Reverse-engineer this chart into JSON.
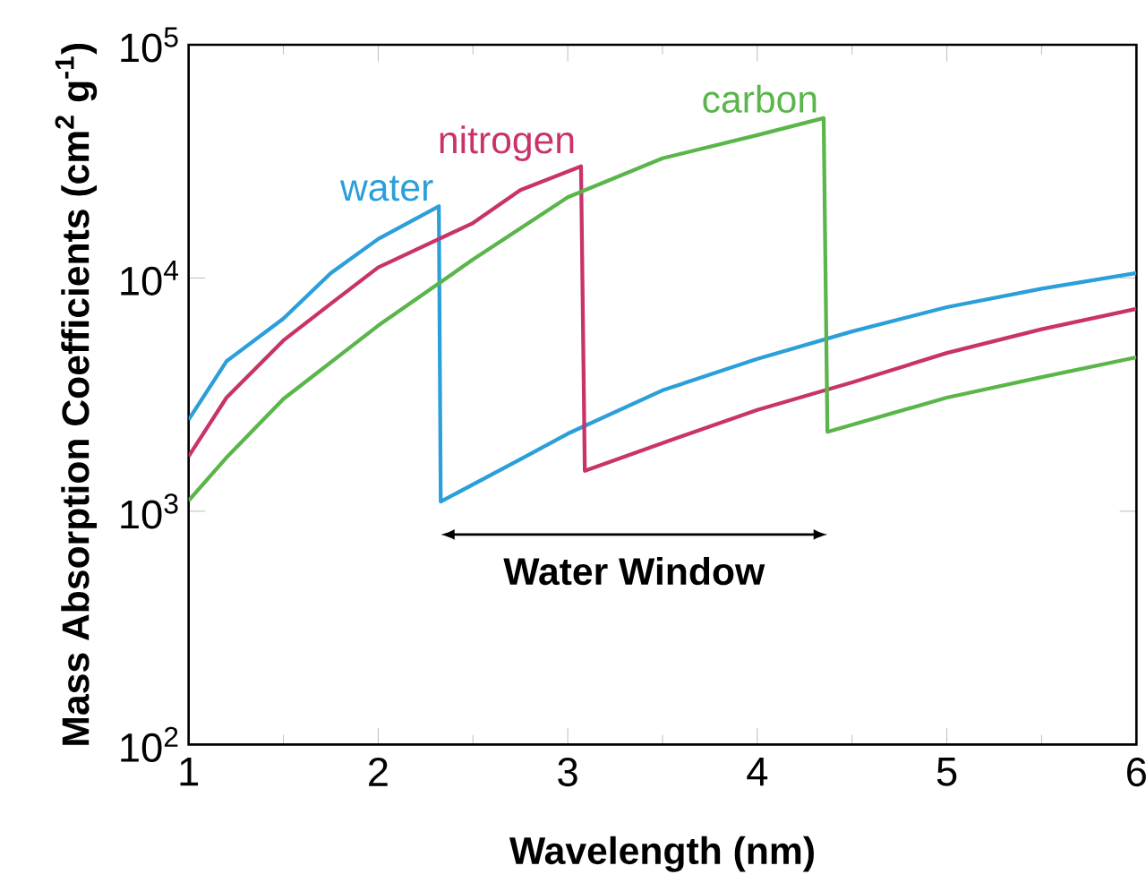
{
  "chart_data": {
    "type": "line",
    "xlabel": "Wavelength (nm)",
    "ylabel": "Mass Absorption Coefficients (cm$^{2}$ g$^{-1}$)",
    "log": "y",
    "grid": false,
    "legend": false,
    "marker": "none",
    "line_style": "solid",
    "xlim": [
      1,
      6
    ],
    "xticks": [
      1,
      2,
      3,
      4,
      5,
      6
    ],
    "ylim": [
      100,
      100000
    ],
    "yticks": [
      {
        "value": 100,
        "label": "10$^{2}$"
      },
      {
        "value": 1000,
        "label": "10$^{3}$"
      },
      {
        "value": 10000,
        "label": "10$^{4}$"
      },
      {
        "value": 100000,
        "label": "10$^{5}$"
      }
    ],
    "annotations": [
      "Water Window"
    ],
    "series": [
      {
        "name": "water",
        "color": "#2a9fd9",
        "x": [
          1,
          1.2,
          1.5,
          1.75,
          2,
          2.32,
          2.33,
          2.75,
          3,
          3.5,
          4,
          4.5,
          5,
          5.5,
          6
        ],
        "values": [
          2470,
          4400,
          6700,
          10500,
          14700,
          20300,
          1100,
          1670,
          2150,
          3300,
          4500,
          5900,
          7500,
          9000,
          10500
        ]
      },
      {
        "name": "nitrogen",
        "color": "#c8336a",
        "x": [
          1,
          1.2,
          1.5,
          1.75,
          2,
          2.5,
          2.75,
          3.07,
          3.09,
          3.5,
          4,
          4.5,
          5,
          5.5,
          6
        ],
        "values": [
          1720,
          3070,
          5400,
          7760,
          11100,
          17200,
          23800,
          30100,
          1490,
          1960,
          2720,
          3570,
          4770,
          6030,
          7380
        ]
      },
      {
        "name": "carbon",
        "color": "#5ab54b",
        "x": [
          1,
          1.2,
          1.5,
          2,
          2.5,
          3,
          3.5,
          4,
          4.35,
          4.37,
          5,
          5.5,
          6
        ],
        "values": [
          1110,
          1700,
          3030,
          6250,
          12000,
          22200,
          32600,
          41000,
          48500,
          2190,
          3070,
          3760,
          4570
        ]
      }
    ]
  }
}
